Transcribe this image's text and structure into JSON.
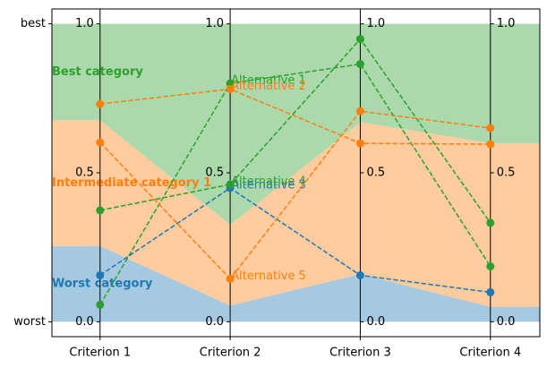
{
  "chart_data": {
    "type": "parallel",
    "categories": [
      "Criterion 1",
      "Criterion 2",
      "Criterion 3",
      "Criterion 4"
    ],
    "xlim": [
      -0.37,
      3.38
    ],
    "ylim": [
      -0.05,
      1.05
    ],
    "yticks": [
      {
        "value": 0,
        "label": "worst"
      },
      {
        "value": 1,
        "label": "best"
      }
    ],
    "axis_yticks": [
      {
        "value": 0,
        "label": "0.0"
      },
      {
        "value": 0.5,
        "label": "0.5"
      },
      {
        "value": 1,
        "label": "1.0"
      }
    ],
    "axis_tick_side": [
      "left",
      "left",
      "right",
      "right"
    ],
    "bands": [
      {
        "name": "Worst category",
        "color": "#1f77b4",
        "upper": [
          0.254,
          0.054,
          0.16,
          0.05
        ]
      },
      {
        "name": "Intermediate category 1",
        "color": "#ff7f0e",
        "upper": [
          0.677,
          0.326,
          0.67,
          0.6
        ]
      },
      {
        "name": "Best category",
        "color": "#2ca02c",
        "upper": [
          1,
          1,
          1,
          1
        ]
      }
    ],
    "series": [
      {
        "name": "Alternative 1",
        "color": "#2ca02c",
        "values": [
          0.057,
          0.8,
          0.865,
          0.186
        ]
      },
      {
        "name": "Alternative 2",
        "color": "#ff7f0e",
        "values": [
          0.731,
          0.781,
          0.599,
          0.596
        ]
      },
      {
        "name": "Alternative 3",
        "color": "#1f77b4",
        "values": [
          0.156,
          0.449,
          0.156,
          0.099
        ]
      },
      {
        "name": "Alternative 4",
        "color": "#2ca02c",
        "values": [
          0.374,
          0.461,
          0.949,
          0.332
        ]
      },
      {
        "name": "Alternative 5",
        "color": "#ff7f0e",
        "values": [
          0.602,
          0.144,
          0.707,
          0.65
        ]
      }
    ]
  }
}
